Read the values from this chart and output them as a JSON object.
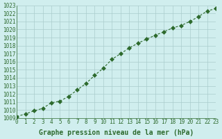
{
  "x": [
    0,
    1,
    2,
    3,
    4,
    5,
    6,
    7,
    8,
    9,
    10,
    11,
    12,
    13,
    14,
    15,
    16,
    17,
    18,
    19,
    20,
    21,
    22,
    23
  ],
  "y": [
    1009.2,
    1009.5,
    1009.9,
    1010.2,
    1010.9,
    1011.1,
    1011.7,
    1012.5,
    1013.3,
    1014.3,
    1015.2,
    1016.3,
    1017.0,
    1017.7,
    1018.3,
    1018.8,
    1019.3,
    1019.7,
    1020.2,
    1020.5,
    1021.0,
    1021.6,
    1022.3,
    1022.6
  ],
  "xlim": [
    0,
    23
  ],
  "ylim": [
    1009,
    1023
  ],
  "yticks": [
    1009,
    1010,
    1011,
    1012,
    1013,
    1014,
    1015,
    1016,
    1017,
    1018,
    1019,
    1020,
    1021,
    1022,
    1023
  ],
  "xticks": [
    0,
    1,
    2,
    3,
    4,
    5,
    6,
    7,
    8,
    9,
    10,
    11,
    12,
    13,
    14,
    15,
    16,
    17,
    18,
    19,
    20,
    21,
    22,
    23
  ],
  "xlabel": "Graphe pression niveau de la mer (hPa)",
  "line_color": "#2d6a2d",
  "marker": "D",
  "marker_size": 3,
  "bg_color": "#d0eeee",
  "grid_color": "#aacccc",
  "title_fontsize": 7,
  "tick_fontsize": 5.5,
  "xlabel_fontsize": 7
}
